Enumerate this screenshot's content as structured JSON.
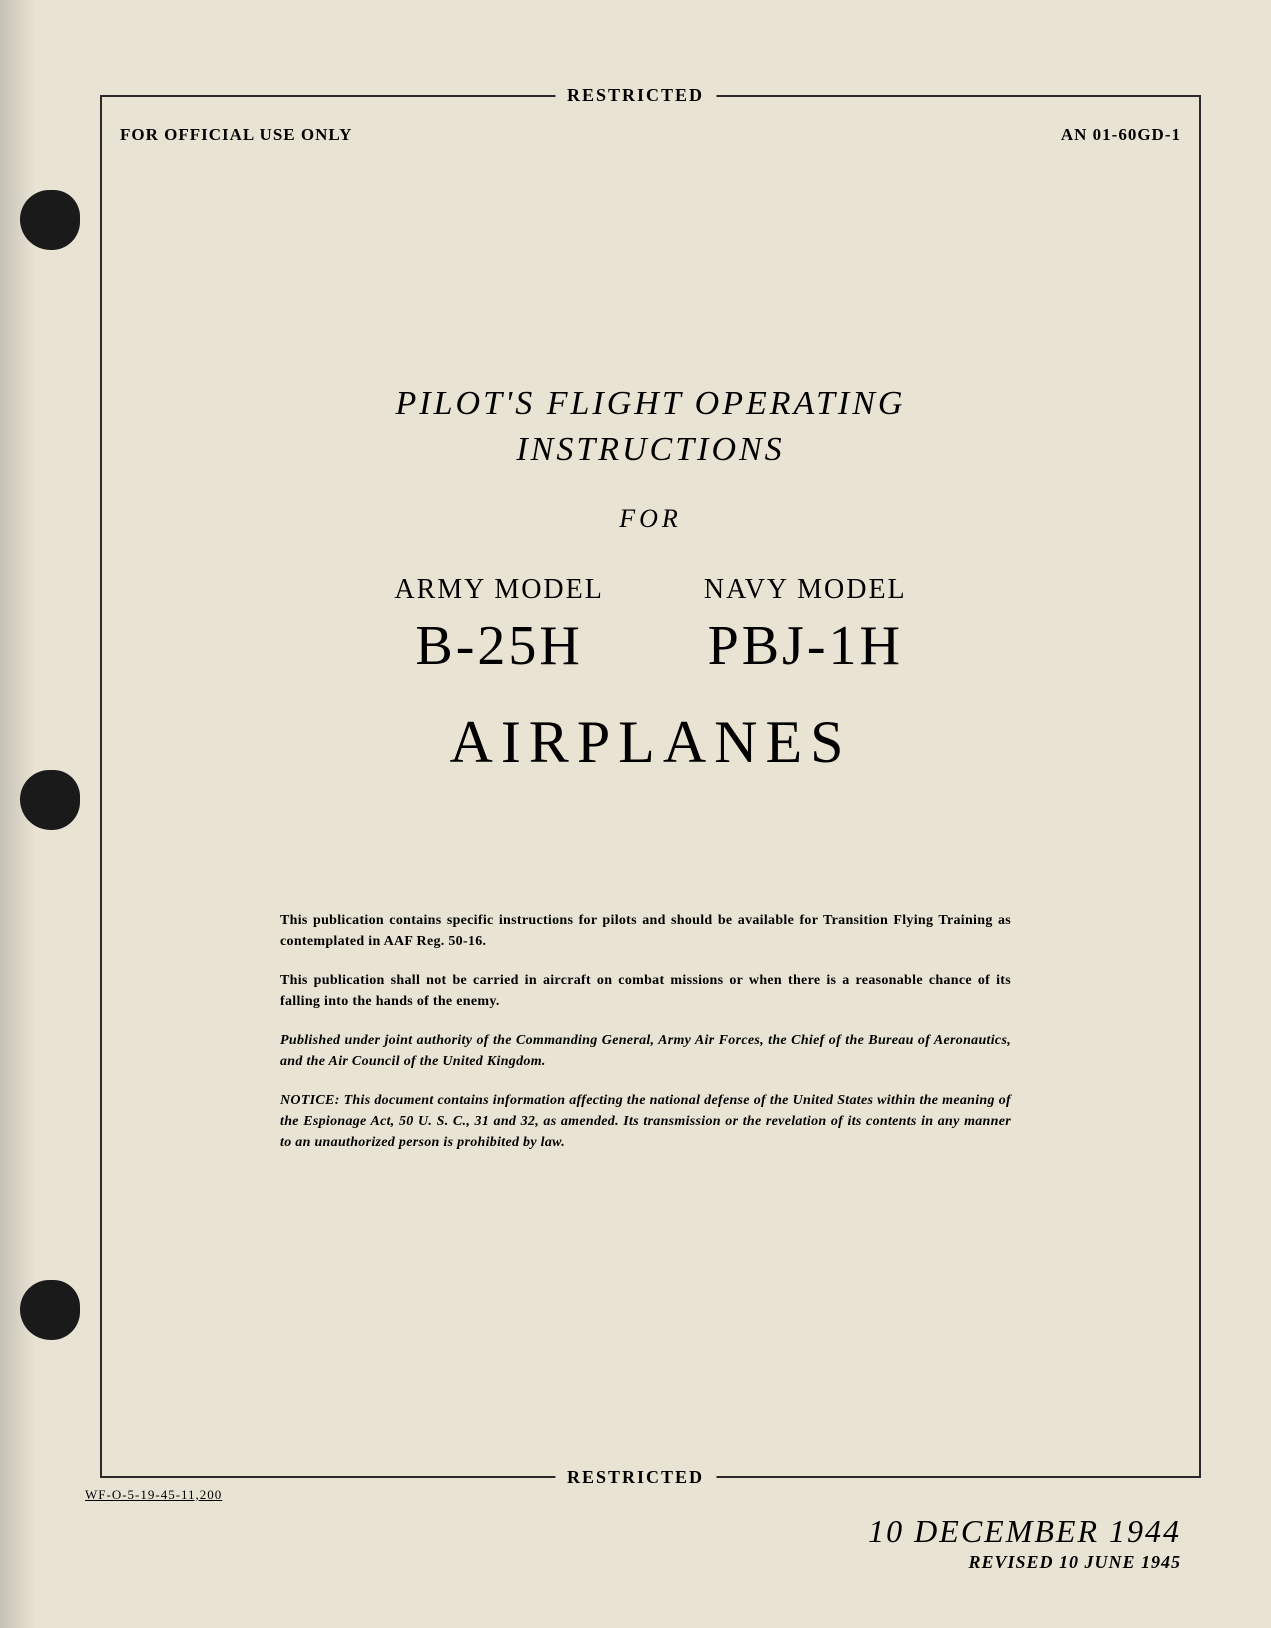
{
  "classification": "RESTRICTED",
  "header": {
    "left": "FOR OFFICIAL USE ONLY",
    "right": "AN 01-60GD-1"
  },
  "title": {
    "line1": "PILOT'S FLIGHT OPERATING",
    "line2": "INSTRUCTIONS",
    "for": "FOR"
  },
  "models": {
    "army_label": "ARMY MODEL",
    "army_code": "B-25H",
    "navy_label": "NAVY MODEL",
    "navy_code": "PBJ-1H"
  },
  "airplanes": "AIRPLANES",
  "notices": {
    "p1": "This publication contains specific instructions for pilots and should be available for Transition Flying Training as contemplated in AAF Reg. 50-16.",
    "p2": "This publication shall not be carried in aircraft on combat missions or when there is a reasonable chance of its falling into the hands of the enemy.",
    "p3": "Published under joint authority of the Commanding General, Army Air Forces, the Chief of the Bureau of Aeronautics, and the Air Council of the United Kingdom.",
    "p4": "NOTICE: This document contains information affecting the national defense of the United States within the meaning of the Espionage Act, 50 U. S. C., 31 and 32, as amended. Its transmission or the revelation of its contents in any manner to an unauthorized person is prohibited by law."
  },
  "footer_code": "WF-O-5-19-45-11,200",
  "date": {
    "main": "10 DECEMBER 1944",
    "revised": "REVISED 10 JUNE 1945"
  },
  "colors": {
    "paper": "#e8e3d3",
    "ink": "#2a2a2a",
    "hole": "#1a1a1a"
  }
}
